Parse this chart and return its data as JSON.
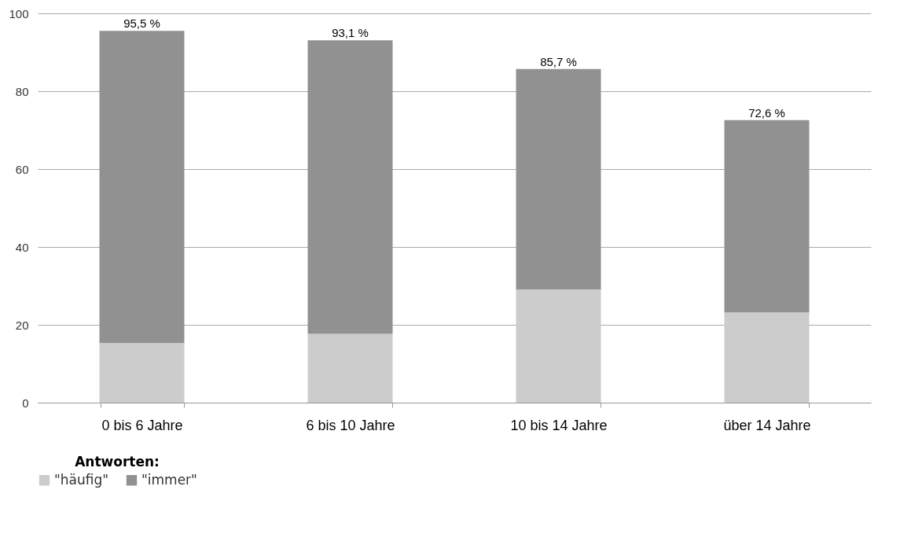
{
  "chart_data": {
    "type": "bar",
    "stacked": true,
    "categories": [
      "0 bis 6 Jahre",
      "6 bis 10 Jahre",
      "10 bis 14 Jahre",
      "über 14 Jahre"
    ],
    "series": [
      {
        "name": "\"häufig\"",
        "color": "#cccccc",
        "values": [
          15.3,
          17.7,
          29.1,
          23.2
        ]
      },
      {
        "name": "\"immer\"",
        "color": "#919191",
        "values": [
          80.2,
          75.4,
          56.6,
          49.4
        ]
      }
    ],
    "totals": [
      "95,5 %",
      "93,1 %",
      "85,7 %",
      "72,6 %"
    ],
    "legend_title": "Antworten:",
    "legend": "bottom",
    "grid": "y",
    "ylim": [
      0,
      100
    ],
    "yticks": [
      0,
      20,
      40,
      60,
      80,
      100
    ]
  }
}
